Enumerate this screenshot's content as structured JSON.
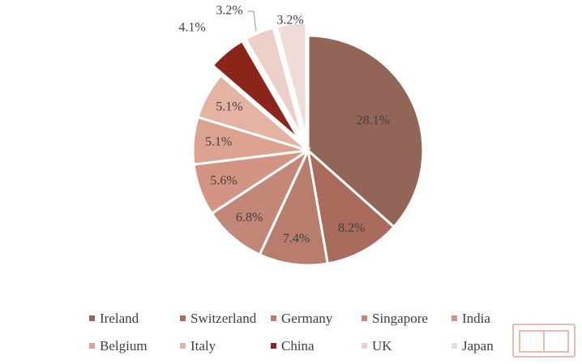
{
  "chart_data": {
    "type": "pie",
    "title": "",
    "legend_position": "bottom",
    "slices": [
      {
        "label": "Ireland",
        "value": 28.1,
        "display": "28.1%",
        "color": "#936556",
        "exploded": false
      },
      {
        "label": "Switzerland",
        "value": 8.2,
        "display": "8.2%",
        "color": "#a86b5c",
        "exploded": false
      },
      {
        "label": "Germany",
        "value": 7.4,
        "display": "7.4%",
        "color": "#b97d6e",
        "exploded": false
      },
      {
        "label": "Singapore",
        "value": 6.8,
        "display": "6.8%",
        "color": "#c38777",
        "exploded": false
      },
      {
        "label": "India",
        "value": 5.6,
        "display": "5.6%",
        "color": "#d49484",
        "exploded": false
      },
      {
        "label": "Belgium",
        "value": 5.1,
        "display": "5.1%",
        "color": "#dda391",
        "exploded": false
      },
      {
        "label": "Italy",
        "value": 5.1,
        "display": "5.1%",
        "color": "#e4b3a4",
        "exploded": false
      },
      {
        "label": "China",
        "value": 4.1,
        "display": "4.1%",
        "color": "#8b2519",
        "exploded": true
      },
      {
        "label": "UK",
        "value": 3.2,
        "display": "3.2%",
        "color": "#ecd0c8",
        "exploded": true
      },
      {
        "label": "Japan",
        "value": 3.2,
        "display": "3.2%",
        "color": "#efdcd7",
        "exploded": true
      }
    ]
  },
  "watermark": "logo stamp"
}
